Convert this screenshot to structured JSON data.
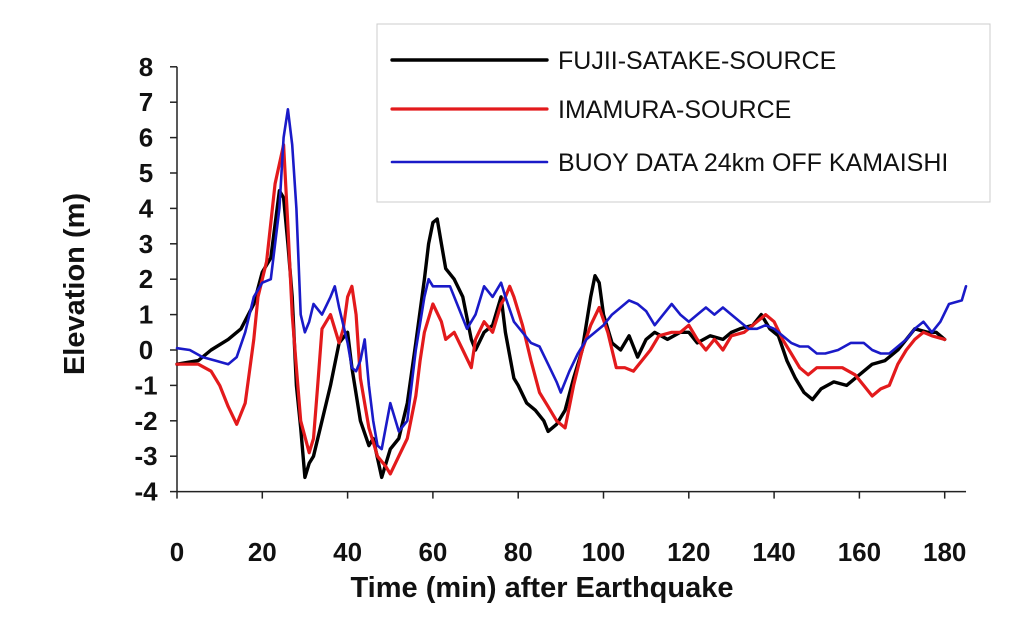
{
  "chart_data": {
    "type": "line",
    "xlabel": "Time (min) after Earthquake",
    "ylabel": "Elevation (m)",
    "xlim": [
      0,
      185
    ],
    "ylim": [
      -4,
      8
    ],
    "xticks": [
      0,
      20,
      40,
      60,
      80,
      100,
      120,
      140,
      160,
      180
    ],
    "yticks": [
      -4,
      -3,
      -2,
      -1,
      0,
      1,
      2,
      3,
      4,
      5,
      6,
      7,
      8
    ],
    "grid": false,
    "legend_position": "top-right",
    "series": [
      {
        "name": "FUJII-SATAKE-SOURCE",
        "color": "#000000",
        "points": [
          [
            0,
            -0.4
          ],
          [
            5,
            -0.3
          ],
          [
            8,
            0.0
          ],
          [
            12,
            0.3
          ],
          [
            15,
            0.6
          ],
          [
            18,
            1.3
          ],
          [
            20,
            2.2
          ],
          [
            22,
            2.6
          ],
          [
            24,
            4.5
          ],
          [
            25,
            4.3
          ],
          [
            26,
            3.0
          ],
          [
            27,
            1.5
          ],
          [
            28,
            -1.0
          ],
          [
            29,
            -2.2
          ],
          [
            30,
            -3.6
          ],
          [
            31,
            -3.2
          ],
          [
            32,
            -3.0
          ],
          [
            34,
            -2.0
          ],
          [
            36,
            -1.0
          ],
          [
            38,
            0.2
          ],
          [
            40,
            0.5
          ],
          [
            41,
            -0.5
          ],
          [
            43,
            -2.0
          ],
          [
            45,
            -2.7
          ],
          [
            46,
            -2.5
          ],
          [
            48,
            -3.6
          ],
          [
            50,
            -2.8
          ],
          [
            52,
            -2.5
          ],
          [
            54,
            -1.5
          ],
          [
            56,
            0.2
          ],
          [
            58,
            2.0
          ],
          [
            59,
            3.0
          ],
          [
            60,
            3.6
          ],
          [
            61,
            3.7
          ],
          [
            62,
            3.0
          ],
          [
            63,
            2.3
          ],
          [
            65,
            2.0
          ],
          [
            67,
            1.5
          ],
          [
            69,
            0.3
          ],
          [
            70,
            0.0
          ],
          [
            72,
            0.5
          ],
          [
            74,
            0.7
          ],
          [
            76,
            1.5
          ],
          [
            77,
            0.5
          ],
          [
            79,
            -0.8
          ],
          [
            80,
            -1.0
          ],
          [
            82,
            -1.5
          ],
          [
            84,
            -1.7
          ],
          [
            86,
            -2.0
          ],
          [
            87,
            -2.3
          ],
          [
            89,
            -2.1
          ],
          [
            91,
            -1.7
          ],
          [
            93,
            -0.8
          ],
          [
            95,
            0.0
          ],
          [
            97,
            1.5
          ],
          [
            98,
            2.1
          ],
          [
            99,
            1.9
          ],
          [
            100,
            1.0
          ],
          [
            102,
            0.2
          ],
          [
            104,
            0.0
          ],
          [
            106,
            0.4
          ],
          [
            108,
            -0.2
          ],
          [
            110,
            0.3
          ],
          [
            112,
            0.5
          ],
          [
            115,
            0.3
          ],
          [
            118,
            0.5
          ],
          [
            120,
            0.5
          ],
          [
            122,
            0.2
          ],
          [
            125,
            0.4
          ],
          [
            128,
            0.3
          ],
          [
            130,
            0.5
          ],
          [
            132,
            0.6
          ],
          [
            135,
            0.7
          ],
          [
            137,
            1.0
          ],
          [
            139,
            0.6
          ],
          [
            141,
            0.4
          ],
          [
            143,
            -0.3
          ],
          [
            145,
            -0.8
          ],
          [
            147,
            -1.2
          ],
          [
            149,
            -1.4
          ],
          [
            151,
            -1.1
          ],
          [
            154,
            -0.9
          ],
          [
            157,
            -1.0
          ],
          [
            160,
            -0.7
          ],
          [
            163,
            -0.4
          ],
          [
            166,
            -0.3
          ],
          [
            169,
            0.0
          ],
          [
            171,
            0.3
          ],
          [
            173,
            0.6
          ],
          [
            176,
            0.5
          ],
          [
            178,
            0.5
          ],
          [
            180,
            0.3
          ]
        ]
      },
      {
        "name": "IMAMURA-SOURCE",
        "color": "#e31a1c",
        "points": [
          [
            0,
            -0.4
          ],
          [
            5,
            -0.4
          ],
          [
            8,
            -0.6
          ],
          [
            10,
            -1.0
          ],
          [
            12,
            -1.6
          ],
          [
            14,
            -2.1
          ],
          [
            16,
            -1.5
          ],
          [
            18,
            0.3
          ],
          [
            19,
            1.5
          ],
          [
            21,
            2.5
          ],
          [
            23,
            4.7
          ],
          [
            25,
            5.8
          ],
          [
            26,
            3.5
          ],
          [
            27,
            1.0
          ],
          [
            28,
            -0.5
          ],
          [
            29,
            -2.0
          ],
          [
            31,
            -2.9
          ],
          [
            32,
            -2.5
          ],
          [
            33,
            -1.0
          ],
          [
            34,
            0.6
          ],
          [
            36,
            1.0
          ],
          [
            38,
            0.2
          ],
          [
            39,
            0.6
          ],
          [
            40,
            1.5
          ],
          [
            41,
            1.8
          ],
          [
            42,
            1.0
          ],
          [
            43,
            -0.8
          ],
          [
            45,
            -2.2
          ],
          [
            47,
            -3.0
          ],
          [
            49,
            -3.3
          ],
          [
            50,
            -3.5
          ],
          [
            52,
            -3.0
          ],
          [
            54,
            -2.5
          ],
          [
            56,
            -1.3
          ],
          [
            57,
            -0.3
          ],
          [
            58,
            0.5
          ],
          [
            60,
            1.3
          ],
          [
            62,
            0.8
          ],
          [
            63,
            0.3
          ],
          [
            65,
            0.5
          ],
          [
            67,
            0.0
          ],
          [
            69,
            -0.5
          ],
          [
            70,
            0.3
          ],
          [
            72,
            0.8
          ],
          [
            74,
            0.5
          ],
          [
            76,
            1.3
          ],
          [
            77,
            1.5
          ],
          [
            78,
            1.8
          ],
          [
            79,
            1.5
          ],
          [
            81,
            0.7
          ],
          [
            83,
            -0.3
          ],
          [
            85,
            -1.2
          ],
          [
            87,
            -1.6
          ],
          [
            89,
            -2.0
          ],
          [
            91,
            -2.2
          ],
          [
            93,
            -1.0
          ],
          [
            95,
            0.0
          ],
          [
            97,
            0.7
          ],
          [
            99,
            1.2
          ],
          [
            101,
            0.5
          ],
          [
            103,
            -0.5
          ],
          [
            105,
            -0.5
          ],
          [
            107,
            -0.6
          ],
          [
            109,
            -0.3
          ],
          [
            111,
            0.0
          ],
          [
            113,
            0.4
          ],
          [
            116,
            0.5
          ],
          [
            118,
            0.5
          ],
          [
            120,
            0.7
          ],
          [
            122,
            0.3
          ],
          [
            124,
            0.0
          ],
          [
            126,
            0.3
          ],
          [
            128,
            0.0
          ],
          [
            130,
            0.4
          ],
          [
            133,
            0.5
          ],
          [
            136,
            0.8
          ],
          [
            138,
            1.0
          ],
          [
            140,
            0.8
          ],
          [
            142,
            0.3
          ],
          [
            144,
            -0.1
          ],
          [
            146,
            -0.5
          ],
          [
            148,
            -0.7
          ],
          [
            150,
            -0.5
          ],
          [
            153,
            -0.5
          ],
          [
            156,
            -0.5
          ],
          [
            159,
            -0.7
          ],
          [
            161,
            -1.0
          ],
          [
            163,
            -1.3
          ],
          [
            165,
            -1.1
          ],
          [
            167,
            -1.0
          ],
          [
            169,
            -0.4
          ],
          [
            171,
            0.0
          ],
          [
            173,
            0.3
          ],
          [
            175,
            0.5
          ],
          [
            177,
            0.4
          ],
          [
            180,
            0.3
          ]
        ]
      },
      {
        "name": "BUOY DATA 24km OFF KAMAISHI",
        "color": "#1a1ac8",
        "points": [
          [
            0,
            0.05
          ],
          [
            3,
            0.0
          ],
          [
            6,
            -0.2
          ],
          [
            9,
            -0.3
          ],
          [
            12,
            -0.4
          ],
          [
            14,
            -0.2
          ],
          [
            16,
            0.5
          ],
          [
            18,
            1.5
          ],
          [
            20,
            1.9
          ],
          [
            22,
            2.0
          ],
          [
            24,
            4.0
          ],
          [
            25,
            6.0
          ],
          [
            26,
            6.8
          ],
          [
            27,
            5.8
          ],
          [
            28,
            4.0
          ],
          [
            29,
            1.0
          ],
          [
            30,
            0.5
          ],
          [
            31,
            0.8
          ],
          [
            32,
            1.3
          ],
          [
            34,
            1.0
          ],
          [
            36,
            1.5
          ],
          [
            37,
            1.8
          ],
          [
            38,
            1.2
          ],
          [
            40,
            0.2
          ],
          [
            41,
            -0.5
          ],
          [
            42,
            -0.6
          ],
          [
            43,
            -0.3
          ],
          [
            44,
            0.3
          ],
          [
            45,
            -1.0
          ],
          [
            46,
            -2.0
          ],
          [
            47,
            -2.7
          ],
          [
            48,
            -2.8
          ],
          [
            50,
            -1.5
          ],
          [
            52,
            -2.3
          ],
          [
            54,
            -2.0
          ],
          [
            56,
            0.0
          ],
          [
            58,
            1.5
          ],
          [
            59,
            2.0
          ],
          [
            60,
            1.8
          ],
          [
            62,
            1.8
          ],
          [
            64,
            1.8
          ],
          [
            66,
            1.2
          ],
          [
            68,
            0.6
          ],
          [
            70,
            1.0
          ],
          [
            72,
            1.8
          ],
          [
            74,
            1.5
          ],
          [
            76,
            1.9
          ],
          [
            77,
            1.5
          ],
          [
            79,
            0.8
          ],
          [
            81,
            0.5
          ],
          [
            83,
            0.2
          ],
          [
            85,
            0.1
          ],
          [
            87,
            -0.4
          ],
          [
            89,
            -0.9
          ],
          [
            90,
            -1.2
          ],
          [
            92,
            -0.6
          ],
          [
            94,
            -0.1
          ],
          [
            96,
            0.3
          ],
          [
            98,
            0.5
          ],
          [
            100,
            0.7
          ],
          [
            102,
            1.0
          ],
          [
            104,
            1.2
          ],
          [
            106,
            1.4
          ],
          [
            108,
            1.3
          ],
          [
            110,
            1.1
          ],
          [
            112,
            0.7
          ],
          [
            114,
            1.0
          ],
          [
            116,
            1.3
          ],
          [
            118,
            1.0
          ],
          [
            120,
            0.8
          ],
          [
            122,
            1.0
          ],
          [
            124,
            1.2
          ],
          [
            126,
            1.0
          ],
          [
            128,
            1.2
          ],
          [
            130,
            1.0
          ],
          [
            132,
            0.8
          ],
          [
            134,
            0.6
          ],
          [
            136,
            0.6
          ],
          [
            138,
            0.7
          ],
          [
            140,
            0.6
          ],
          [
            142,
            0.4
          ],
          [
            144,
            0.2
          ],
          [
            146,
            0.1
          ],
          [
            148,
            0.1
          ],
          [
            150,
            -0.1
          ],
          [
            152,
            -0.1
          ],
          [
            155,
            0.0
          ],
          [
            158,
            0.2
          ],
          [
            161,
            0.2
          ],
          [
            163,
            0.0
          ],
          [
            165,
            -0.1
          ],
          [
            167,
            -0.1
          ],
          [
            169,
            0.1
          ],
          [
            171,
            0.3
          ],
          [
            173,
            0.6
          ],
          [
            175,
            0.8
          ],
          [
            177,
            0.5
          ],
          [
            179,
            0.8
          ],
          [
            181,
            1.3
          ],
          [
            184,
            1.4
          ],
          [
            185,
            1.8
          ]
        ]
      }
    ]
  }
}
